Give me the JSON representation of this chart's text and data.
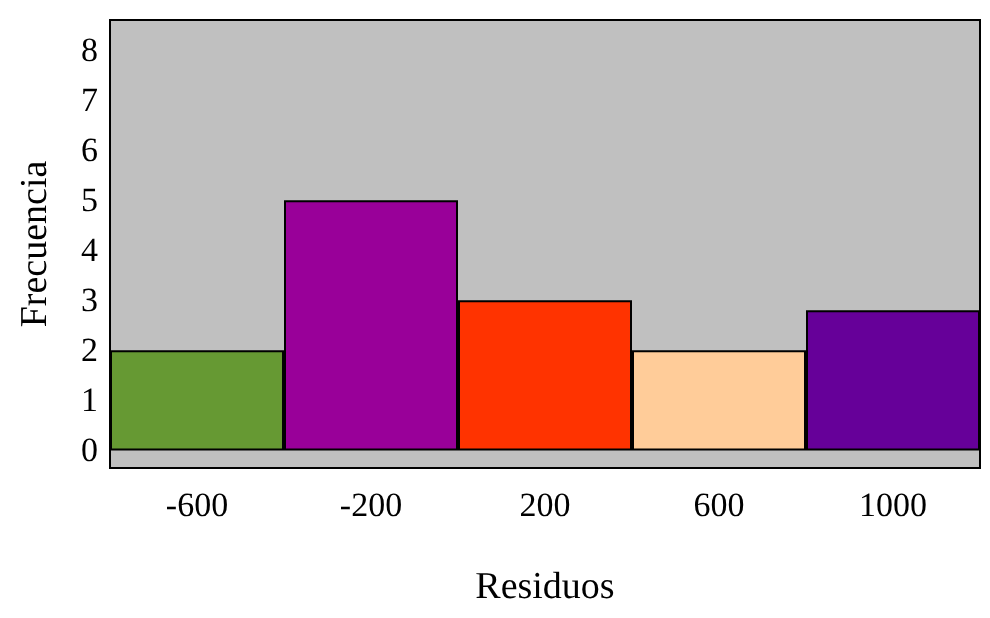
{
  "chart_data": {
    "type": "bar",
    "xlabel": "Residuos",
    "ylabel": "Frecuencia",
    "categories": [
      "-600",
      "-200",
      "200",
      "600",
      "1000"
    ],
    "values": [
      2,
      5,
      3,
      2,
      2.8
    ],
    "colors": [
      "#669933",
      "#990099",
      "#ff3300",
      "#ffcc99",
      "#660099"
    ],
    "ylim": [
      -0.35,
      8.6
    ],
    "yticks": [
      0,
      1,
      2,
      3,
      4,
      5,
      6,
      7,
      8
    ],
    "grid": false
  }
}
